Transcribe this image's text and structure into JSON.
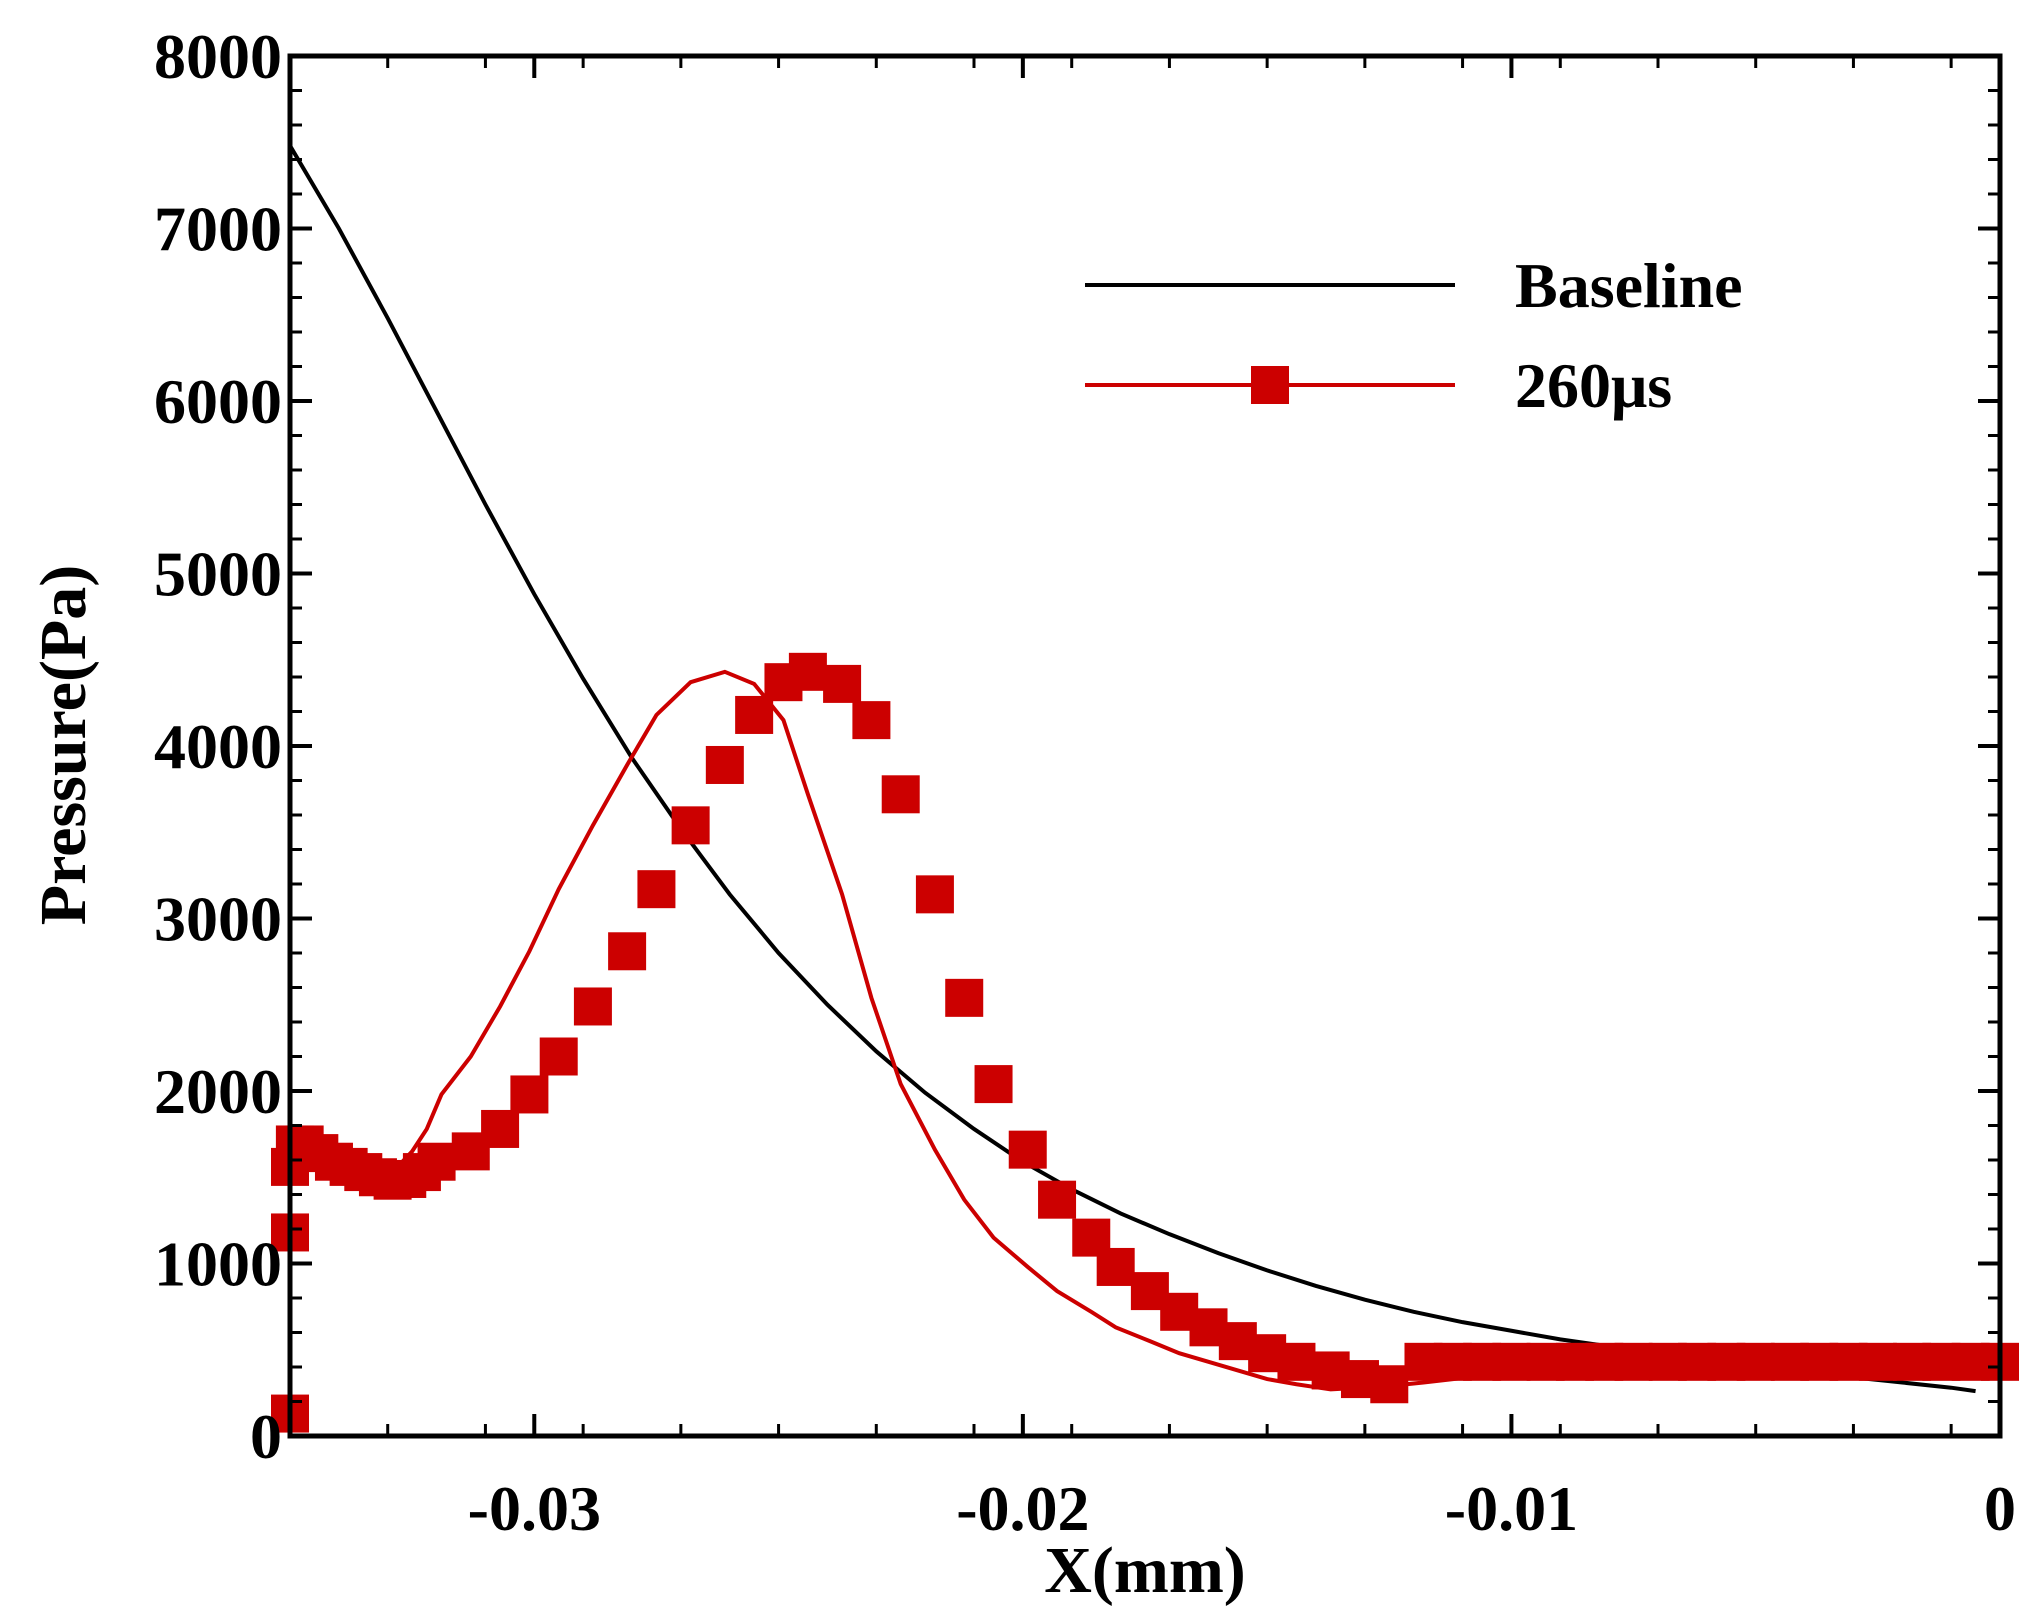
{
  "chart_data": {
    "type": "line",
    "title": "",
    "xlabel": "X(mm)",
    "ylabel": "Pressure(Pa)",
    "xlim": [
      -0.035,
      0
    ],
    "ylim": [
      0,
      8000
    ],
    "xticks": [
      -0.03,
      -0.02,
      -0.01,
      0
    ],
    "xtick_labels": [
      "-0.03",
      "-0.02",
      "-0.01",
      "0"
    ],
    "yticks": [
      0,
      1000,
      2000,
      3000,
      4000,
      5000,
      6000,
      7000,
      8000
    ],
    "ytick_labels": [
      "0",
      "1000",
      "2000",
      "3000",
      "4000",
      "5000",
      "6000",
      "7000",
      "8000"
    ],
    "grid": false,
    "legend_position": "top-right",
    "series": [
      {
        "name": "Baseline",
        "color": "#000000",
        "marker": "none",
        "x": [
          -0.035,
          -0.034,
          -0.033,
          -0.032,
          -0.031,
          -0.03,
          -0.029,
          -0.028,
          -0.027,
          -0.026,
          -0.025,
          -0.024,
          -0.023,
          -0.022,
          -0.021,
          -0.02,
          -0.019,
          -0.018,
          -0.017,
          -0.016,
          -0.015,
          -0.014,
          -0.013,
          -0.012,
          -0.011,
          -0.01,
          -0.009,
          -0.008,
          -0.007,
          -0.006,
          -0.005,
          -0.004,
          -0.003,
          -0.002,
          -0.001,
          -0.0005
        ],
        "values": [
          7480,
          7000,
          6480,
          5940,
          5400,
          4880,
          4390,
          3930,
          3520,
          3140,
          2800,
          2500,
          2230,
          1990,
          1780,
          1590,
          1430,
          1290,
          1170,
          1060,
          960,
          870,
          790,
          720,
          660,
          610,
          560,
          520,
          480,
          440,
          400,
          370,
          340,
          310,
          280,
          260
        ]
      },
      {
        "name": "260μs",
        "color": "#cc0000",
        "marker": "square",
        "x": [
          -0.035,
          -0.035,
          -0.035,
          -0.0349,
          -0.0346,
          -0.0343,
          -0.034,
          -0.0337,
          -0.0334,
          -0.0331,
          -0.0328,
          -0.0325,
          -0.0322,
          -0.0319,
          -0.0313,
          -0.0307,
          -0.0301,
          -0.0295,
          -0.0288,
          -0.0281,
          -0.0275,
          -0.0268,
          -0.0261,
          -0.0255,
          -0.0249,
          -0.0244,
          -0.0237,
          -0.0231,
          -0.0225,
          -0.0218,
          -0.0212,
          -0.0206,
          -0.0199,
          -0.0193,
          -0.0186,
          -0.0181,
          -0.0174,
          -0.0168,
          -0.0162,
          -0.0156,
          -0.015,
          -0.0144,
          -0.0137,
          -0.0131,
          -0.0125,
          -0.0118,
          -0.0112,
          -0.0106,
          -0.01,
          -0.0093,
          -0.0087,
          -0.0081,
          -0.0075,
          -0.0068,
          -0.0062,
          -0.0056,
          -0.005,
          -0.0043,
          -0.0037,
          -0.0031,
          -0.0025,
          -0.0018,
          -0.0012,
          -0.0006,
          0
        ],
        "values": [
          130,
          1180,
          1560,
          1680,
          1700,
          1630,
          1570,
          1530,
          1490,
          1500,
          1560,
          1650,
          1780,
          1980,
          2200,
          2490,
          2810,
          3170,
          3540,
          3890,
          4180,
          4370,
          4430,
          4360,
          4150,
          3720,
          3140,
          2540,
          2040,
          1660,
          1370,
          1150,
          980,
          840,
          720,
          630,
          550,
          480,
          430,
          380,
          330,
          300,
          270,
          280,
          290,
          310,
          330,
          350,
          370,
          390,
          410,
          420,
          430,
          440,
          445,
          450,
          450,
          450,
          450,
          450,
          450,
          450,
          450,
          450,
          450
        ],
        "marker_x": [
          -0.035,
          -0.035,
          -0.035,
          -0.0349,
          -0.0347,
          -0.0344,
          -0.0341,
          -0.0338,
          -0.0335,
          -0.0332,
          -0.0329,
          -0.0326,
          -0.0323,
          -0.032,
          -0.0313,
          -0.0307,
          -0.0301,
          -0.0295,
          -0.0288,
          -0.0281,
          -0.0275,
          -0.0268,
          -0.0261,
          -0.0255,
          -0.0249,
          -0.0244,
          -0.0237,
          -0.0231,
          -0.0225,
          -0.0218,
          -0.0212,
          -0.0206,
          -0.0199,
          -0.0193,
          -0.0186,
          -0.0181,
          -0.0174,
          -0.0168,
          -0.0162,
          -0.0156,
          -0.015,
          -0.0144,
          -0.0137,
          -0.0131,
          -0.0125,
          -0.0118,
          -0.0112,
          -0.0106,
          -0.01,
          -0.0093,
          -0.0087,
          -0.0081,
          -0.0075,
          -0.0068,
          -0.0062,
          -0.0056,
          -0.005,
          -0.0043,
          -0.0037,
          -0.0031,
          -0.0025,
          -0.0018,
          -0.0012,
          -0.0006,
          0
        ],
        "marker_values": [
          130,
          1180,
          1560,
          1690,
          1690,
          1640,
          1590,
          1560,
          1530,
          1500,
          1480,
          1490,
          1530,
          1590,
          1650,
          1780,
          1980,
          2200,
          2490,
          2810,
          3170,
          3540,
          3890,
          4180,
          4370,
          4430,
          4360,
          4150,
          3720,
          3140,
          2540,
          2040,
          1660,
          1370,
          1150,
          980,
          840,
          720,
          630,
          550,
          480,
          430,
          380,
          330,
          300,
          430,
          430,
          430,
          430,
          430,
          430,
          430,
          430,
          430,
          430,
          430,
          430,
          430,
          430,
          430,
          430,
          430,
          430,
          430,
          430
        ]
      }
    ]
  }
}
